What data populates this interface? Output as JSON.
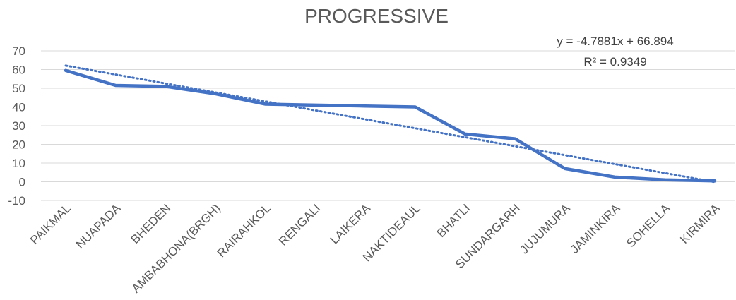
{
  "chart_data": {
    "type": "line",
    "title": "PROGRESSIVE",
    "categories": [
      "PAIKMAL",
      "NUAPADA",
      "BHEDEN",
      "AMBABHONA(BRGH)",
      "RAIRAHKOL",
      "RENGALI",
      "LAIKERA",
      "NAKTIDEAUL",
      "BHATLI",
      "SUNDARGARH",
      "JUJUMURA",
      "JAMINKIRA",
      "SOHELLA",
      "KIRMIRA"
    ],
    "series": [
      {
        "values": [
          59.5,
          51.5,
          51,
          47,
          41.5,
          41,
          40.5,
          40,
          25.5,
          23,
          7,
          2.5,
          1,
          0.5
        ]
      }
    ],
    "trendline": {
      "type": "linear",
      "slope": -4.7881,
      "intercept": 66.894,
      "r_squared": 0.9349
    },
    "equation_label": "y = -4.7881x + 66.894",
    "r2_label": "R² = 0.9349",
    "ylim": [
      -10,
      70
    ],
    "yticks": [
      -10,
      0,
      10,
      20,
      30,
      40,
      50,
      60,
      70
    ],
    "grid": true,
    "legend": "none",
    "colors": {
      "series": "#4472c4",
      "gridline": "#d9d9d9",
      "text": "#595959"
    }
  }
}
